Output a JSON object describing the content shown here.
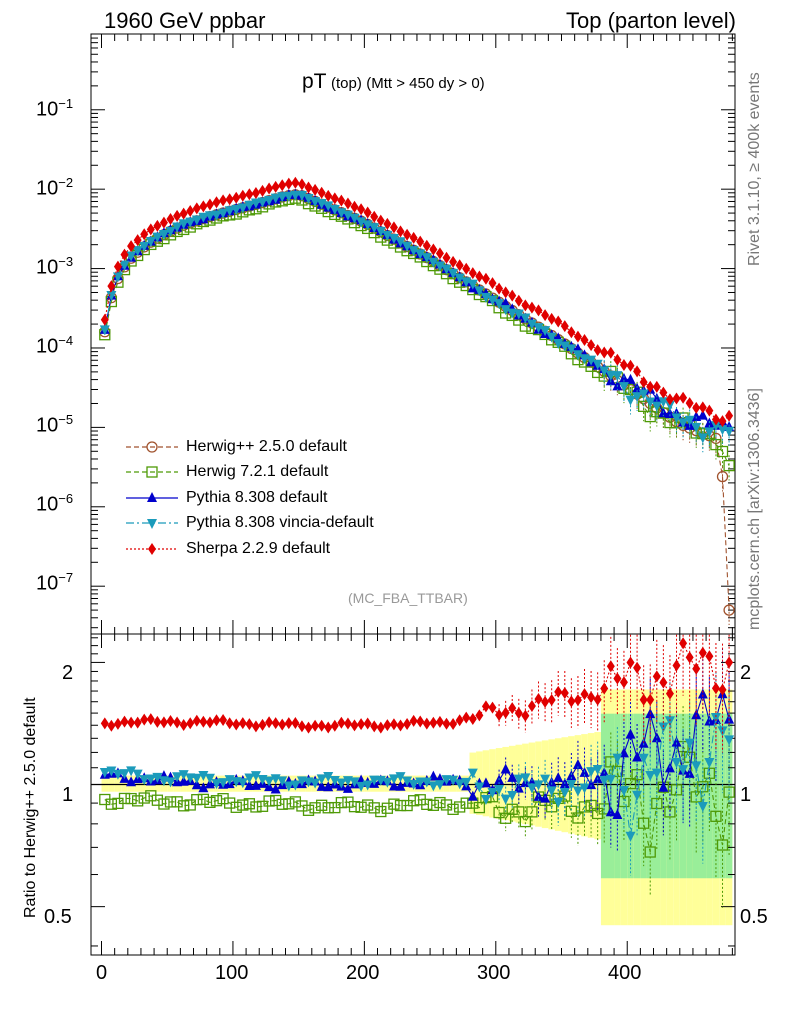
{
  "header": {
    "left": "1960 GeV ppbar",
    "right": "Top (parton level)"
  },
  "plot_title": {
    "main": "pT",
    "sub": "(top)",
    "cut": "(Mtt > 450 dy > 0)"
  },
  "side_labels": {
    "rivet": "Rivet 3.1.10, ≥ 400k events",
    "mcplots": "mcplots.cern.ch [arXiv:1306.3436]"
  },
  "analysis_ref": "(MC_FBA_TTBAR)",
  "ratio_ylabel": "Ratio to Herwig++ 2.5.0 default",
  "legend": [
    {
      "label": "Herwig++ 2.5.0 default",
      "color": "#a0522d",
      "marker": "open-circle",
      "dash": "5,3"
    },
    {
      "label": "Herwig 7.2.1 default",
      "color": "#4e9a06",
      "marker": "open-square",
      "dash": "5,3"
    },
    {
      "label": "Pythia 8.308 default",
      "color": "#0000cc",
      "marker": "filled-triangle-up",
      "dash": ""
    },
    {
      "label": "Pythia 8.308 vincia-default",
      "color": "#1b9bbb",
      "marker": "filled-triangle-down",
      "dash": "8,3,2,3"
    },
    {
      "label": "Sherpa 2.2.9 default",
      "color": "#e00000",
      "marker": "filled-diamond",
      "dash": "2,2"
    }
  ],
  "main_axis_labels": {
    "e-1": "10",
    "e-2": "10",
    "e-3": "10",
    "e-4": "10",
    "e-5": "10",
    "e-6": "10",
    "e-7": "10"
  },
  "ratio_axis_labels": [
    "2",
    "1",
    "0.5"
  ],
  "x_axis_labels": [
    "0",
    "100",
    "200",
    "300",
    "400"
  ],
  "chart_data": {
    "type": "line",
    "title": "pT (top) (Mtt > 450 dy > 0)",
    "xlabel": "",
    "ylabel": "",
    "xlim": [
      -8,
      482
    ],
    "ylim_log": [
      2.5e-08,
      0.9
    ],
    "ratio_ylim": [
      0.38,
      2.35
    ],
    "x_ticks": [
      0,
      100,
      200,
      300,
      400
    ],
    "y_ticks_log": [
      0.1,
      0.01,
      0.001,
      0.0001,
      1e-05,
      1e-06,
      1e-07
    ],
    "ratio_ticks": [
      2,
      1,
      0.5
    ],
    "anchors": {
      "x": [
        2.5,
        7.5,
        12.5,
        17.5,
        22.5,
        30,
        40,
        60,
        80,
        100,
        120,
        140,
        150,
        160,
        200,
        250,
        300,
        350,
        400,
        440,
        470
      ],
      "herwig_pp": [
        0.00016,
        0.00043,
        0.00075,
        0.00105,
        0.00135,
        0.00175,
        0.0023,
        0.0034,
        0.0044,
        0.0054,
        0.0066,
        0.0082,
        0.0086,
        0.0073,
        0.0038,
        0.0013,
        0.0004,
        0.00012,
        3.2e-05,
        1.1e-05,
        7e-06
      ]
    },
    "ratio_trend": {
      "x": [
        0,
        50,
        100,
        150,
        200,
        260,
        300,
        340,
        380,
        420,
        470
      ],
      "herwig7": [
        0.92,
        0.91,
        0.9,
        0.89,
        0.88,
        0.9,
        0.87,
        0.88,
        0.9,
        0.95,
        1.0
      ],
      "pythia": [
        1.06,
        1.02,
        1.0,
        1.0,
        1.0,
        1.02,
        1.0,
        1.0,
        1.05,
        1.2,
        1.4
      ],
      "vincia": [
        1.07,
        1.04,
        1.03,
        1.02,
        1.02,
        1.02,
        0.98,
        0.98,
        1.02,
        1.1,
        1.3
      ],
      "sherpa": [
        1.42,
        1.43,
        1.42,
        1.4,
        1.4,
        1.42,
        1.5,
        1.6,
        1.7,
        1.85,
        2.0
      ]
    },
    "bins": {
      "start": 2.5,
      "step": 5,
      "count": 96
    },
    "notable_points": [
      {
        "series": "Herwig++ 2.5.0 default",
        "x": 472,
        "y": 2.4e-06
      },
      {
        "series": "Herwig++ 2.5.0 default",
        "x": 477,
        "y": 5e-08
      },
      {
        "series": "Herwig 7.2.1 default",
        "x": 477,
        "y": 3.3e-06
      }
    ],
    "series": [
      {
        "name": "Herwig++ 2.5.0 default",
        "role": "reference"
      },
      {
        "name": "Herwig 7.2.1 default"
      },
      {
        "name": "Pythia 8.308 default"
      },
      {
        "name": "Pythia 8.308 vincia-default"
      },
      {
        "name": "Sherpa 2.2.9 default"
      }
    ],
    "bands": {
      "yellow": "#ffff99",
      "green": "#99ee99"
    }
  }
}
